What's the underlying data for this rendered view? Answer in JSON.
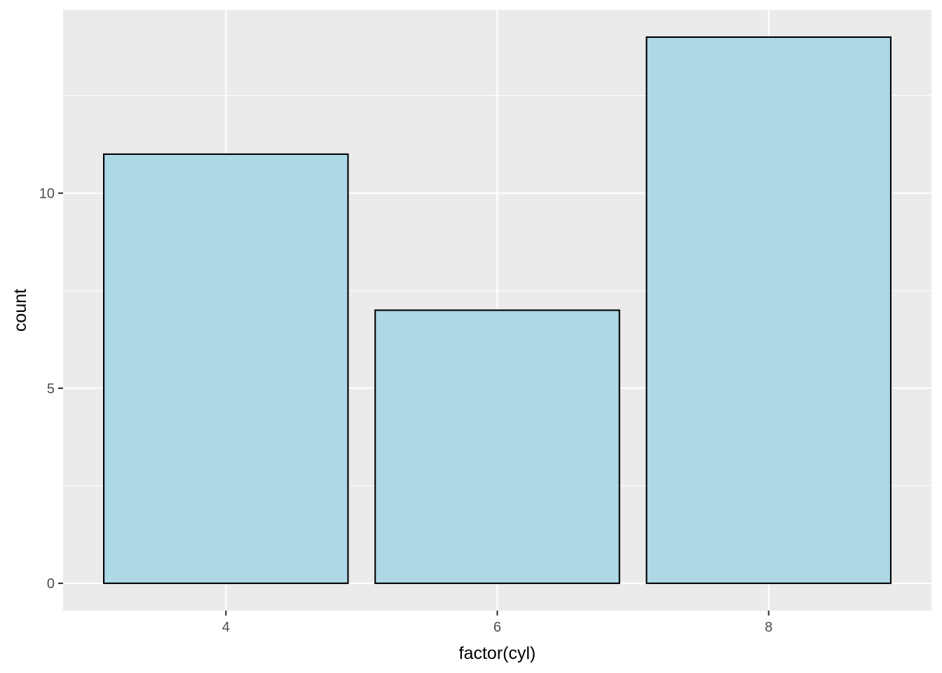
{
  "chart_data": {
    "type": "bar",
    "categories": [
      "4",
      "6",
      "8"
    ],
    "values": [
      11,
      7,
      14
    ],
    "xlabel": "factor(cyl)",
    "ylabel": "count",
    "ylim": [
      -0.7,
      14.7
    ],
    "yticks": [
      0,
      5,
      10
    ],
    "yticks_minor": [
      2.5,
      7.5,
      12.5
    ],
    "grid": true,
    "legend": "none",
    "colors": {
      "panel_background": "#EBEBEB",
      "grid_line": "#FFFFFF",
      "bar_fill": "#ADD8E6",
      "bar_stroke": "#000000",
      "tick_mark": "#333333"
    }
  }
}
